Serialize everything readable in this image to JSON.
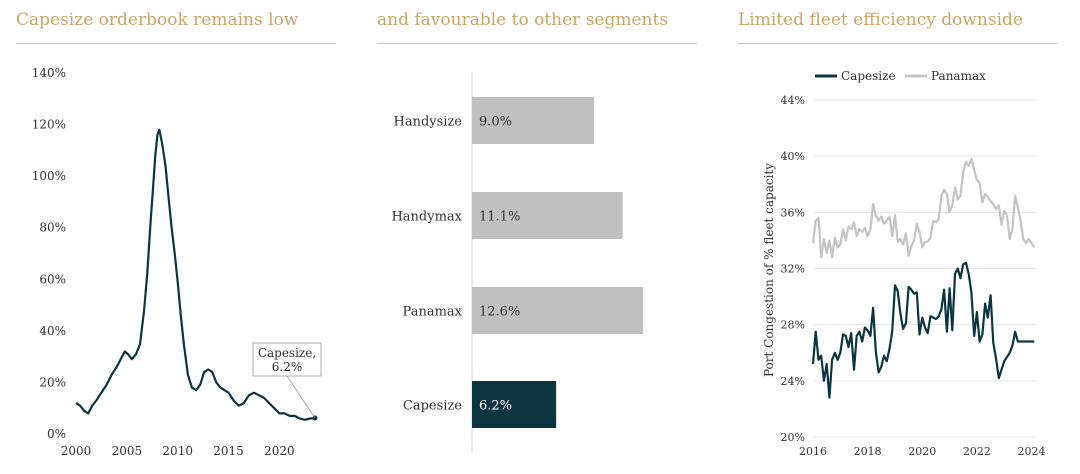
{
  "panels": [
    {
      "title": "Capesize orderbook remains low"
    },
    {
      "title": "and favourable to other segments"
    },
    {
      "title": "Limited fleet efficiency downside"
    }
  ],
  "chart_data": [
    {
      "type": "line",
      "xlim": [
        2000,
        2023.5
      ],
      "ylim": [
        0,
        140
      ],
      "x_ticks": [
        "2000",
        "2005",
        "2010",
        "2015",
        "2020"
      ],
      "y_ticks": [
        "0%",
        "20%",
        "40%",
        "60%",
        "80%",
        "100%",
        "120%",
        "140%"
      ],
      "grid": false,
      "color": "#0d3540",
      "annotation": {
        "lines": [
          "Capesize,",
          "6.2%"
        ]
      },
      "series": [
        {
          "x": [
            2000,
            2000.4,
            2000.8,
            2001.2,
            2001.6,
            2002,
            2002.5,
            2003,
            2003.5,
            2004,
            2004.4,
            2004.8,
            2005.1,
            2005.5,
            2005.9,
            2006.3,
            2006.7,
            2007,
            2007.3,
            2007.6,
            2007.8,
            2008,
            2008.2,
            2008.5,
            2008.8,
            2009.1,
            2009.4,
            2009.7,
            2010,
            2010.3,
            2010.6,
            2011,
            2011.4,
            2011.8,
            2012.2,
            2012.6,
            2013,
            2013.4,
            2013.8,
            2014.2,
            2014.6,
            2015,
            2015.5,
            2016,
            2016.5,
            2017,
            2017.5,
            2018,
            2018.5,
            2019,
            2019.5,
            2020,
            2020.5,
            2021,
            2021.5,
            2022,
            2022.5,
            2023,
            2023.5
          ],
          "y": [
            12,
            11,
            9,
            8,
            11,
            13,
            16,
            19,
            23,
            26,
            29,
            32,
            31,
            29,
            31,
            35,
            48,
            62,
            80,
            97,
            108,
            116,
            118,
            112,
            104,
            92,
            80,
            70,
            59,
            46,
            35,
            23,
            18,
            17,
            19,
            24,
            25,
            24,
            20,
            18,
            17,
            16,
            13,
            11,
            12,
            15,
            16,
            15,
            14,
            12,
            10,
            8,
            8,
            7,
            7,
            6,
            5.5,
            6,
            6.2
          ]
        }
      ]
    },
    {
      "type": "bar",
      "orientation": "horizontal",
      "categories": [
        "Handysize",
        "Handymax",
        "Panamax",
        "Capesize"
      ],
      "values": [
        9.0,
        11.1,
        12.6,
        6.2
      ],
      "labels": [
        "9.0%",
        "11.1%",
        "12.6%",
        "6.2%"
      ],
      "highlight": "Capesize",
      "colors": {
        "default": "#c0c0c0",
        "highlight": "#0d3540"
      }
    },
    {
      "type": "line",
      "ylabel": "Port Congestion of % fleet capacity",
      "xlim": [
        2016,
        2024.2
      ],
      "ylim": [
        20,
        44
      ],
      "x_ticks": [
        "2016",
        "2018",
        "2020",
        "2022",
        "2024"
      ],
      "y_ticks": [
        "20%",
        "24%",
        "28%",
        "32%",
        "36%",
        "40%",
        "44%"
      ],
      "grid": true,
      "legend": "top",
      "series": [
        {
          "name": "Capesize",
          "color": "#0d3540",
          "x": [
            2016,
            2016.1,
            2016.2,
            2016.3,
            2016.4,
            2016.5,
            2016.6,
            2016.7,
            2016.8,
            2016.9,
            2017,
            2017.1,
            2017.2,
            2017.3,
            2017.4,
            2017.5,
            2017.6,
            2017.7,
            2017.8,
            2017.9,
            2018,
            2018.1,
            2018.2,
            2018.3,
            2018.4,
            2018.5,
            2018.6,
            2018.7,
            2018.8,
            2018.9,
            2019,
            2019.1,
            2019.2,
            2019.3,
            2019.4,
            2019.5,
            2019.6,
            2019.7,
            2019.8,
            2019.9,
            2020,
            2020.1,
            2020.2,
            2020.3,
            2020.4,
            2020.5,
            2020.6,
            2020.7,
            2020.8,
            2020.9,
            2021,
            2021.1,
            2021.2,
            2021.3,
            2021.4,
            2021.5,
            2021.6,
            2021.7,
            2021.8,
            2021.9,
            2022,
            2022.1,
            2022.2,
            2022.3,
            2022.4,
            2022.5,
            2022.6,
            2022.7,
            2022.8,
            2022.9,
            2023,
            2023.1,
            2023.2,
            2023.3,
            2023.4,
            2023.5,
            2023.6,
            2023.7,
            2023.8,
            2023.9,
            2024,
            2024.1
          ],
          "y": [
            25.2,
            27.5,
            25.5,
            25.8,
            24,
            25.2,
            22.8,
            25.5,
            26,
            25.5,
            26,
            27.3,
            27.2,
            26.4,
            27.4,
            24.8,
            27.2,
            27.5,
            26.8,
            27.8,
            27.6,
            27.2,
            29.2,
            26.1,
            24.6,
            25,
            25.8,
            25.4,
            26.3,
            27.5,
            30.8,
            30.4,
            28.8,
            27.7,
            28.1,
            30.7,
            30.5,
            30.2,
            30.3,
            27.3,
            28.5,
            27.8,
            27.4,
            28.6,
            28.5,
            28.4,
            28.6,
            29.1,
            30.5,
            27.5,
            30.6,
            27.6,
            31.6,
            32,
            31.3,
            32.3,
            32.4,
            31.6,
            30.3,
            27.2,
            28.9,
            26.8,
            27.3,
            29.5,
            28.5,
            30.1,
            26.7,
            25.6,
            24.2,
            24.8,
            25.4,
            25.7,
            26,
            26.5,
            27.5,
            26.8,
            26.8,
            26.8,
            26.8,
            26.8,
            26.8,
            26.8
          ],
          "x_end_note": ""
        },
        {
          "name": "Panamax",
          "color": "#c4c4c4",
          "x": [
            2016,
            2016.1,
            2016.2,
            2016.3,
            2016.4,
            2016.5,
            2016.6,
            2016.7,
            2016.8,
            2016.9,
            2017,
            2017.1,
            2017.2,
            2017.3,
            2017.4,
            2017.5,
            2017.6,
            2017.7,
            2017.8,
            2017.9,
            2018,
            2018.1,
            2018.2,
            2018.3,
            2018.4,
            2018.5,
            2018.6,
            2018.7,
            2018.8,
            2018.9,
            2019,
            2019.1,
            2019.2,
            2019.3,
            2019.4,
            2019.5,
            2019.6,
            2019.7,
            2019.8,
            2019.9,
            2020,
            2020.1,
            2020.2,
            2020.3,
            2020.4,
            2020.5,
            2020.6,
            2020.7,
            2020.8,
            2020.9,
            2021,
            2021.1,
            2021.2,
            2021.3,
            2021.4,
            2021.5,
            2021.6,
            2021.7,
            2021.8,
            2021.9,
            2022,
            2022.1,
            2022.2,
            2022.3,
            2022.4,
            2022.5,
            2022.6,
            2022.7,
            2022.8,
            2022.9,
            2023,
            2023.1,
            2023.2,
            2023.3,
            2023.4,
            2023.5,
            2023.6,
            2023.7,
            2023.8,
            2023.9,
            2024,
            2024.1
          ],
          "y": [
            33.8,
            35.4,
            35.6,
            32.8,
            34.1,
            33.1,
            34,
            32.8,
            34.2,
            33.5,
            33.7,
            34.8,
            34,
            35,
            34.8,
            35.3,
            34.3,
            34.8,
            34.6,
            34.9,
            34.3,
            34.8,
            36.6,
            35.8,
            35.4,
            35.7,
            35.2,
            35.4,
            35.7,
            34.3,
            35.8,
            33.9,
            34.1,
            33.7,
            34.5,
            32.9,
            33.6,
            34,
            35.2,
            34.6,
            33.5,
            33.9,
            33.9,
            34.2,
            35.4,
            35.3,
            35.5,
            37.2,
            37.6,
            37.3,
            36,
            36.5,
            37.8,
            36.9,
            37.2,
            38.9,
            39.6,
            39.3,
            39.8,
            39,
            38.3,
            38.1,
            36.7,
            37.3,
            37.1,
            36.8,
            36.6,
            36.2,
            36.5,
            35.1,
            36.1,
            35.8,
            34.1,
            34.8,
            37.2,
            36.3,
            35.4,
            34.1,
            33.8,
            34.1,
            33.8,
            33.5
          ]
        }
      ]
    }
  ]
}
